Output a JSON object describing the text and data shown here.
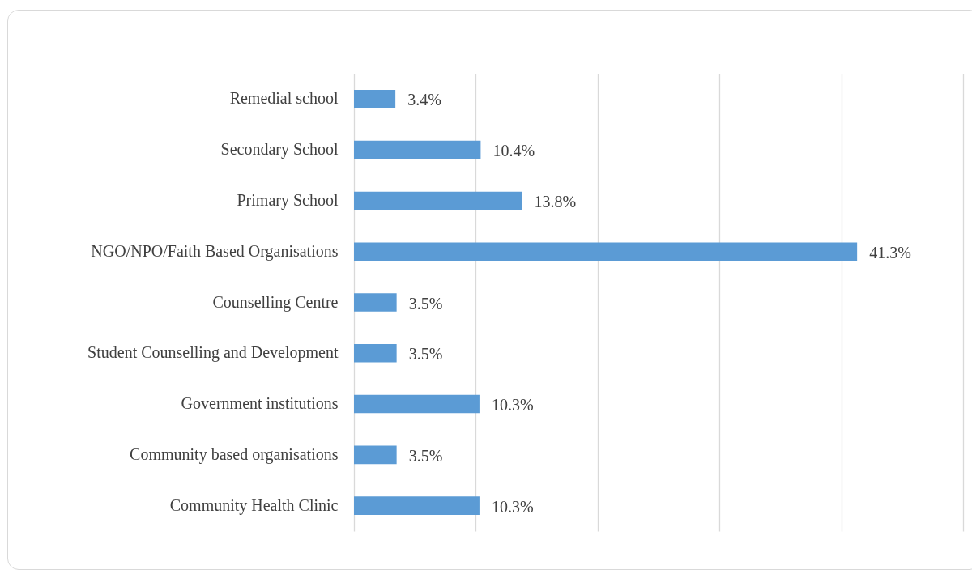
{
  "chart_data": {
    "type": "bar",
    "orientation": "horizontal",
    "categories": [
      "Remedial school",
      "Secondary School",
      "Primary School",
      "NGO/NPO/Faith Based Organisations",
      "Counselling Centre",
      "Student Counselling and Development ",
      "Government institutions",
      "Community based organisations",
      "Community Health Clinic"
    ],
    "values": [
      3.4,
      10.4,
      13.8,
      41.3,
      3.5,
      3.5,
      10.3,
      3.5,
      10.3
    ],
    "value_labels": [
      "3.4%",
      "10.4%",
      "13.8%",
      "41.3%",
      "3.5%",
      "3.5%",
      "10.3%",
      "3.5%",
      "10.3%"
    ],
    "color": "#5b9bd5",
    "xlim": [
      0,
      50
    ],
    "xticks": [
      {
        "value": 0,
        "label": null
      },
      {
        "value": 10,
        "label": null
      },
      {
        "value": 20,
        "label": null
      },
      {
        "value": 30,
        "label": null
      },
      {
        "value": 40,
        "label": null
      },
      {
        "value": 50,
        "label": null
      }
    ],
    "grid": "x",
    "tick_labels": "y"
  }
}
